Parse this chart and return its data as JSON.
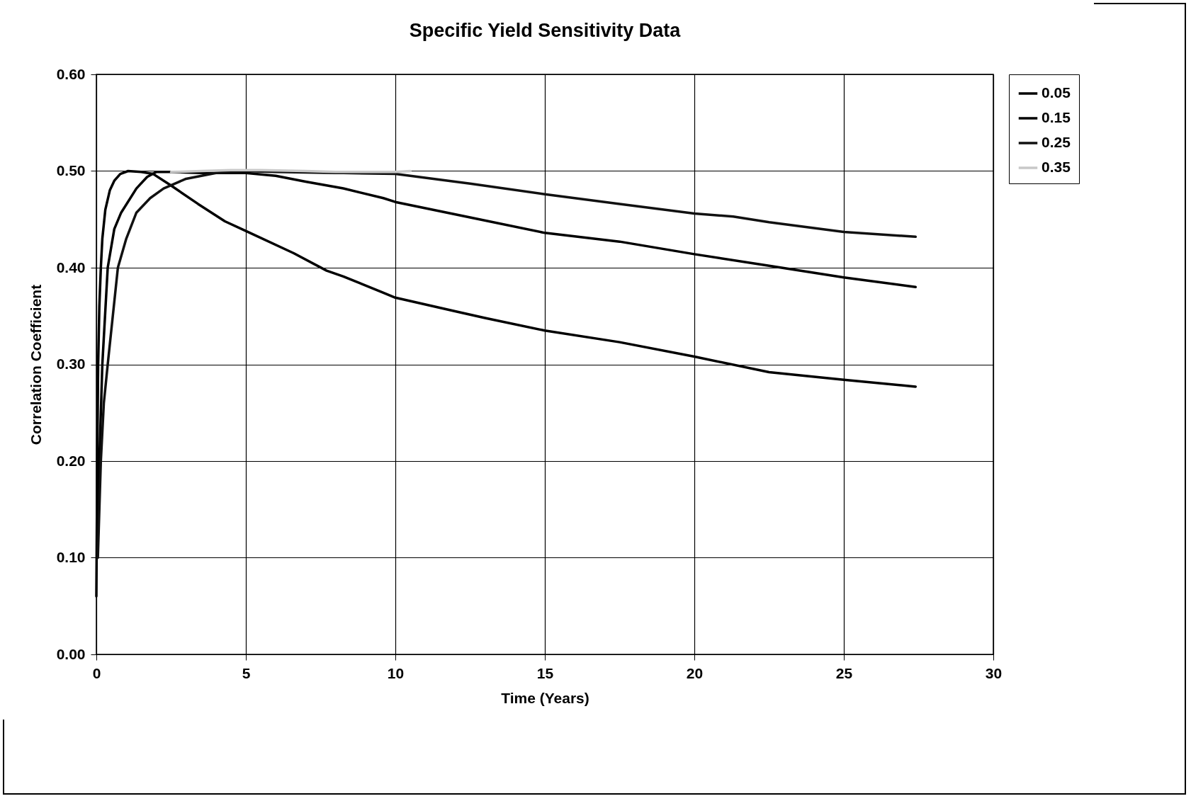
{
  "chart_data": {
    "type": "line",
    "title": "Specific Yield Sensitivity Data",
    "xlabel": "Time (Years)",
    "ylabel": "Correlation Coefficient",
    "xlim": [
      0,
      30
    ],
    "xticks": [
      0,
      5,
      10,
      15,
      20,
      25,
      30
    ],
    "ylim": [
      0,
      0.6
    ],
    "yticks": [
      {
        "value": 0,
        "label": "0.00"
      },
      {
        "value": 0.1,
        "label": "0.10"
      },
      {
        "value": 0.2,
        "label": "0.20"
      },
      {
        "value": 0.3,
        "label": "0.30"
      },
      {
        "value": 0.4,
        "label": "0.40"
      },
      {
        "value": 0.5,
        "label": "0.50"
      },
      {
        "value": 0.6,
        "label": "0.60"
      }
    ],
    "grid": true,
    "legend": "right",
    "marker": "none",
    "line_style": "solid",
    "series": [
      {
        "name": "0.05",
        "color": "#000000",
        "x": [
          0,
          0.03,
          0.06,
          0.1,
          0.15,
          0.2,
          0.3,
          0.45,
          0.6,
          0.8,
          1.06,
          1.5,
          1.9,
          2.5,
          3.4,
          4.3,
          5,
          6.6,
          7.7,
          8.26,
          9.6,
          10,
          12,
          13,
          15,
          17.5,
          20,
          22.5,
          25,
          27.4
        ],
        "values": [
          0.06,
          0.2,
          0.3,
          0.36,
          0.4,
          0.43,
          0.46,
          0.48,
          0.49,
          0.497,
          0.5,
          0.499,
          0.497,
          0.485,
          0.466,
          0.448,
          0.438,
          0.415,
          0.397,
          0.391,
          0.374,
          0.369,
          0.355,
          0.348,
          0.335,
          0.323,
          0.308,
          0.292,
          0.284,
          0.277
        ]
      },
      {
        "name": "0.15",
        "color": "#000000",
        "x": [
          0.03,
          0.1,
          0.2,
          0.38,
          0.6,
          0.83,
          1.34,
          1.7,
          2.0,
          2.5,
          3.5,
          5,
          6,
          7,
          8.26,
          9.6,
          10,
          12.5,
          15,
          17.5,
          20,
          22.5,
          25,
          27.4
        ],
        "values": [
          0.1,
          0.2,
          0.3,
          0.4,
          0.44,
          0.457,
          0.482,
          0.494,
          0.499,
          0.499,
          0.498,
          0.498,
          0.495,
          0.489,
          0.482,
          0.472,
          0.468,
          0.452,
          0.436,
          0.427,
          0.414,
          0.402,
          0.39,
          0.38
        ]
      },
      {
        "name": "0.25",
        "color": "#111111",
        "x": [
          0.05,
          0.15,
          0.25,
          0.38,
          0.72,
          1.0,
          1.34,
          1.8,
          2.25,
          3,
          4,
          5,
          6,
          8,
          8.26,
          10,
          12.5,
          15,
          17.5,
          20,
          21.3,
          22.5,
          25,
          27.4
        ],
        "values": [
          0.1,
          0.2,
          0.26,
          0.3,
          0.4,
          0.43,
          0.457,
          0.472,
          0.482,
          0.492,
          0.498,
          0.5,
          0.499,
          0.498,
          0.498,
          0.497,
          0.487,
          0.476,
          0.466,
          0.456,
          0.453,
          0.447,
          0.437,
          0.432
        ]
      },
      {
        "name": "0.35",
        "color": "#c8c8c8",
        "x": [
          2.5,
          3.5,
          4.5,
          5.5,
          7,
          8,
          9,
          10,
          10.5
        ],
        "values": [
          0.499,
          0.5,
          0.501,
          0.501,
          0.5,
          0.499,
          0.499,
          0.499,
          0.5
        ]
      }
    ]
  }
}
